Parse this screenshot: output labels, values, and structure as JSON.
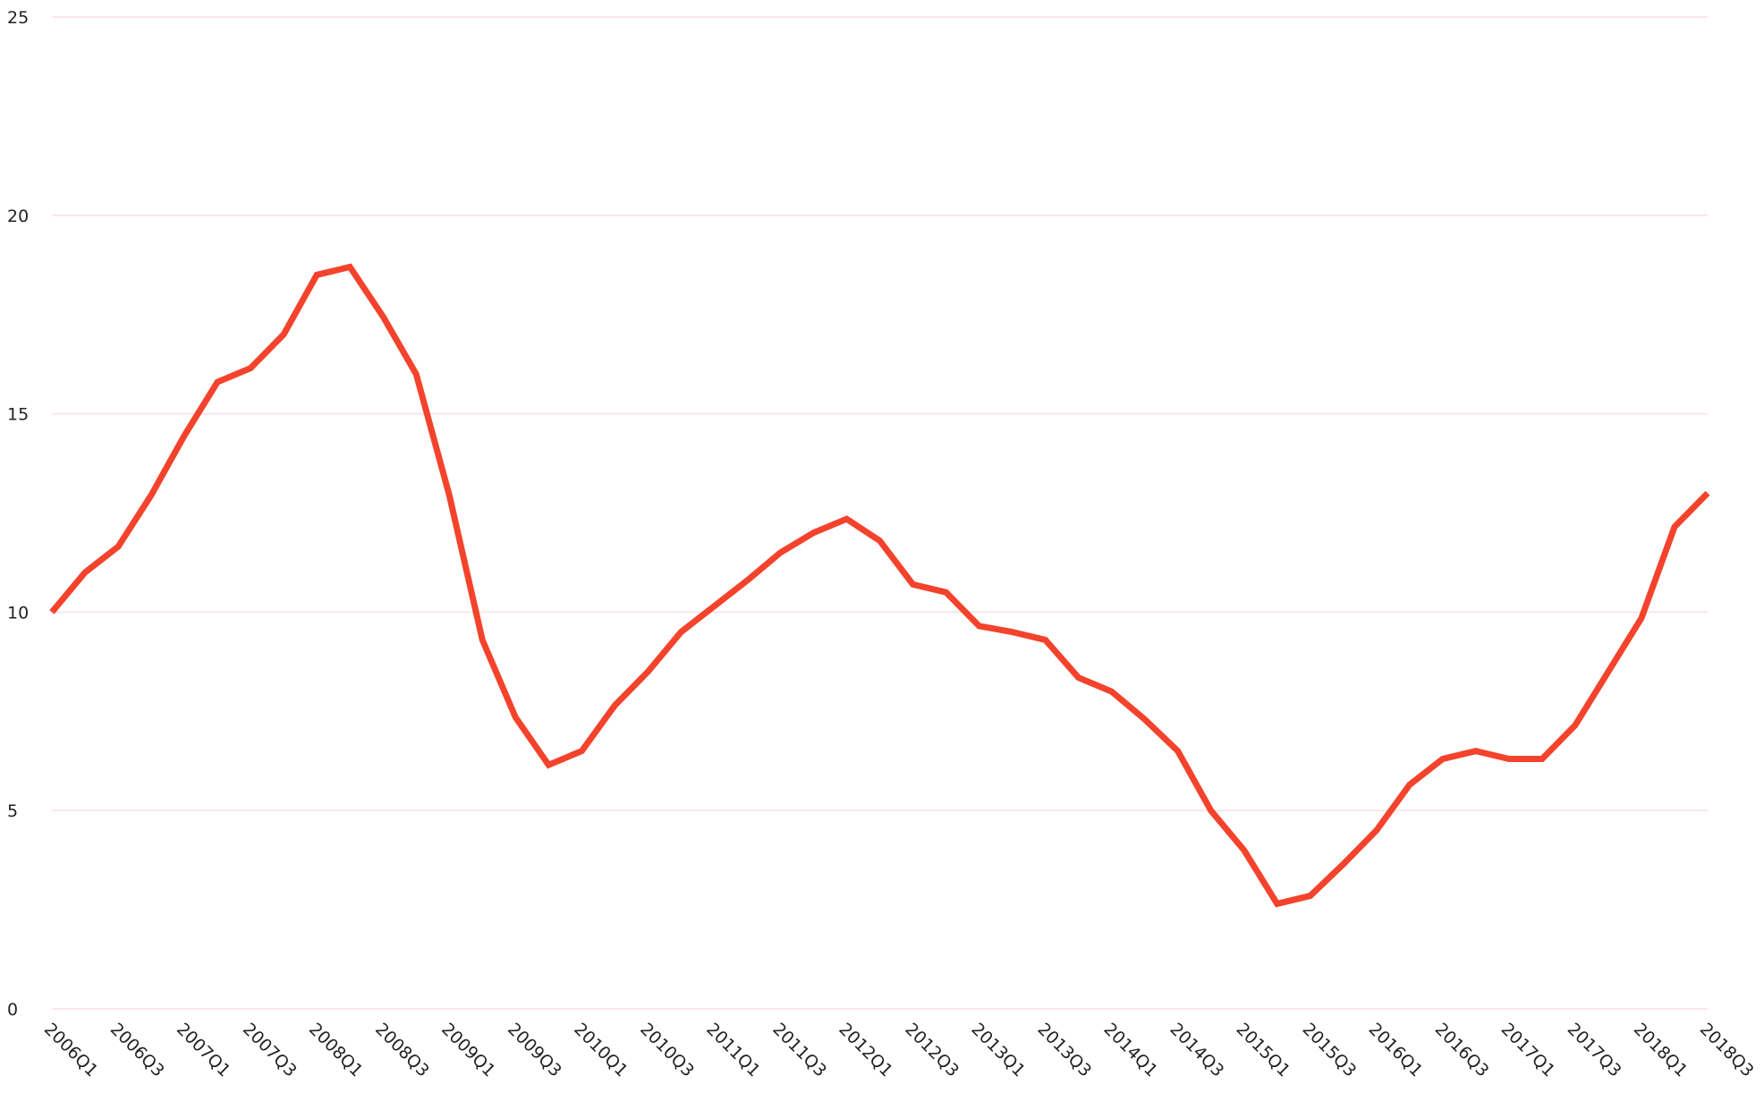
{
  "chart_data": {
    "type": "line",
    "categories": [
      "2006Q1",
      null,
      "2006Q3",
      null,
      "2007Q1",
      null,
      "2007Q3",
      null,
      "2008Q1",
      null,
      "2008Q3",
      null,
      "2009Q1",
      null,
      "2009Q3",
      null,
      "2010Q1",
      null,
      "2010Q3",
      null,
      "2011Q1",
      null,
      "2011Q3",
      null,
      "2012Q1",
      null,
      "2012Q3",
      null,
      "2013Q1",
      null,
      "2013Q3",
      null,
      "2014Q1",
      null,
      "2014Q3",
      null,
      "2015Q1",
      null,
      "2015Q3",
      null,
      "2016Q1",
      null,
      "2016Q3",
      null,
      "2017Q1",
      null,
      "2017Q3",
      null,
      "2018Q1",
      null,
      "2018Q3"
    ],
    "series": [
      {
        "color": "#f4432c",
        "values": [
          10.0,
          11.0,
          11.65,
          12.95,
          14.45,
          15.8,
          16.15,
          17.0,
          18.5,
          18.7,
          17.45,
          16.0,
          12.95,
          9.3,
          7.35,
          6.15,
          6.5,
          7.65,
          8.5,
          9.5,
          10.15,
          10.8,
          11.5,
          12.0,
          12.35,
          11.8,
          10.7,
          10.5,
          9.65,
          9.5,
          9.3,
          8.35,
          8.0,
          7.3,
          6.5,
          5.0,
          4.0,
          2.65,
          2.85,
          3.65,
          4.5,
          5.65,
          6.3,
          6.5,
          6.3,
          6.3,
          7.15,
          8.5,
          9.85,
          12.15,
          13.0
        ]
      }
    ],
    "ylim": [
      0,
      25
    ],
    "yticks": [
      0,
      5,
      10,
      15,
      20,
      25
    ],
    "grid": true
  }
}
